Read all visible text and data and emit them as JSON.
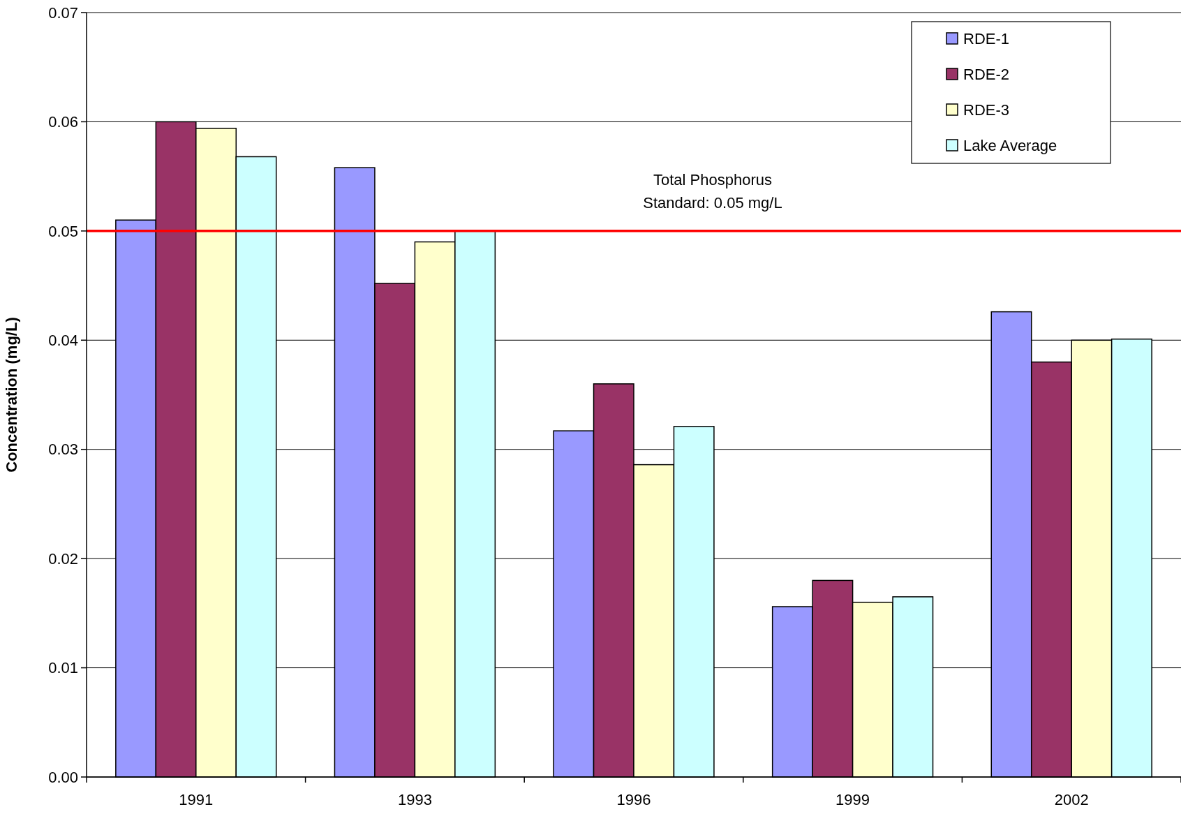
{
  "chart_data": {
    "type": "bar",
    "ylabel": "Concentration (mg/L)",
    "categories": [
      "1991",
      "1993",
      "1996",
      "1999",
      "2002"
    ],
    "series": [
      {
        "name": "RDE-1",
        "color": "#9999ff",
        "values": [
          0.051,
          0.0558,
          0.0317,
          0.0156,
          0.0426
        ]
      },
      {
        "name": "RDE-2",
        "color": "#993366",
        "values": [
          0.06,
          0.0452,
          0.036,
          0.018,
          0.038
        ]
      },
      {
        "name": "RDE-3",
        "color": "#ffffcc",
        "values": [
          0.0594,
          0.049,
          0.0286,
          0.016,
          0.04
        ]
      },
      {
        "name": "Lake Average",
        "color": "#ccffff",
        "values": [
          0.0568,
          0.05,
          0.0321,
          0.0165,
          0.0401
        ]
      }
    ],
    "ylim": [
      0,
      0.07
    ],
    "yticks": [
      {
        "value": 0,
        "label": "0.00"
      },
      0.01,
      0.02,
      0.03,
      0.04,
      0.05,
      0.06,
      0.07
    ],
    "grid": "y",
    "legend": "top right",
    "ref_lines": [
      {
        "axis": "y",
        "value": 0.05,
        "label": "Total Phosphorus\nStandard: 0.05 mg/L",
        "color": "#ff0000"
      }
    ]
  }
}
